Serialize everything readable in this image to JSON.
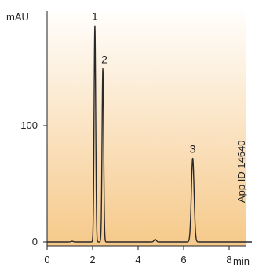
{
  "chart_data": {
    "type": "line",
    "title": "",
    "xlabel": "min",
    "ylabel": "mAU",
    "xlim": [
      0,
      9
    ],
    "ylim": [
      -3,
      191
    ],
    "x_ticks": [
      0,
      2,
      4,
      6,
      8
    ],
    "x_tick_labels": [
      "0",
      "2",
      "4",
      "6",
      "8"
    ],
    "y_ticks": [
      0,
      100
    ],
    "y_tick_labels": [
      "0",
      "100"
    ],
    "grid": false,
    "legend": "none",
    "baseline": 0,
    "peaks": [
      {
        "label": "1",
        "rt": 2.1,
        "height": 186,
        "width": 0.035
      },
      {
        "label": "2",
        "rt": 2.45,
        "height": 149,
        "width": 0.035
      },
      {
        "label": "3",
        "rt": 6.4,
        "height": 72,
        "width": 0.06
      }
    ],
    "minor_features": [
      {
        "rt": 1.1,
        "height": 0.6,
        "width": 0.05
      },
      {
        "rt": 4.75,
        "height": 2.2,
        "width": 0.05
      }
    ],
    "annotation": "App ID 14640",
    "colors": {
      "trace": "#2a2a2a",
      "background_top": "#fffefc",
      "background_bottom": "#f6c98a",
      "axis": "#222222"
    }
  }
}
